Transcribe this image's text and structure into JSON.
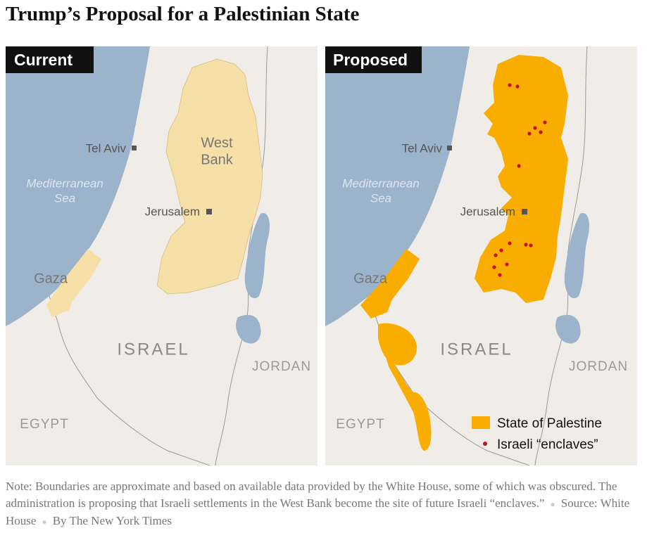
{
  "title": "Trump’s Proposal for a Palestinian State",
  "panels": [
    {
      "badge": "Current",
      "tel_aviv": "Tel Aviv",
      "sea": [
        "Mediterranean",
        "Sea"
      ],
      "jerusalem": "Jerusalem",
      "west_bank": [
        "West",
        "Bank"
      ],
      "gaza": "Gaza",
      "israel": "ISRAEL",
      "jordan": "JORDAN",
      "egypt": "EGYPT"
    },
    {
      "badge": "Proposed",
      "tel_aviv": "Tel Aviv",
      "sea": [
        "Mediterranean",
        "Sea"
      ],
      "jerusalem": "Jerusalem",
      "gaza": "Gaza",
      "israel": "ISRAEL",
      "jordan": "JORDAN",
      "egypt": "EGYPT",
      "legend": [
        "State of Palestine",
        "Israeli “enclaves”"
      ]
    }
  ],
  "note": {
    "text": "Note: Boundaries are approximate and based on available data provided by the White House, some of which was obscured. The administration is proposing that Israeli settlements in the West Bank become the site of future Israeli “enclaves.”",
    "source": "Source: White House",
    "byline": "By The New York Times"
  }
}
